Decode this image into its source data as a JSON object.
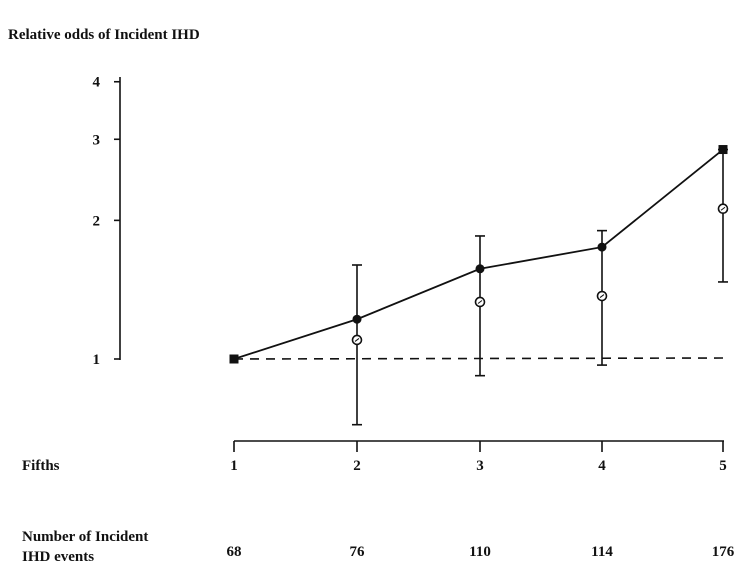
{
  "chart_data": {
    "type": "line",
    "title": "Relative odds of Incident IHD",
    "x_axis_label": "Fifths",
    "categories": [
      "1",
      "2",
      "3",
      "4",
      "5"
    ],
    "y_scale": "log",
    "y_ticks": [
      "1",
      "2",
      "3",
      "4"
    ],
    "ylim": [
      1,
      4
    ],
    "reference_line": 1,
    "series": [
      {
        "marker": "filled-circle",
        "line": "solid",
        "values": [
          1.0,
          1.22,
          1.57,
          1.75,
          2.85
        ],
        "ci_low": [
          null,
          0.72,
          0.92,
          0.97,
          1.47
        ],
        "ci_high": [
          null,
          1.6,
          1.85,
          1.9,
          2.85
        ]
      },
      {
        "marker": "open-circle",
        "line": "none",
        "values": [
          1.0,
          1.1,
          1.33,
          1.37,
          2.12
        ],
        "ci_low": [
          null,
          null,
          null,
          null,
          null
        ],
        "ci_high": [
          null,
          null,
          null,
          null,
          null
        ]
      }
    ],
    "events_row": {
      "label_line1": "Number of Incident",
      "label_line2": "IHD events",
      "values": [
        "68",
        "76",
        "110",
        "114",
        "176"
      ]
    }
  }
}
